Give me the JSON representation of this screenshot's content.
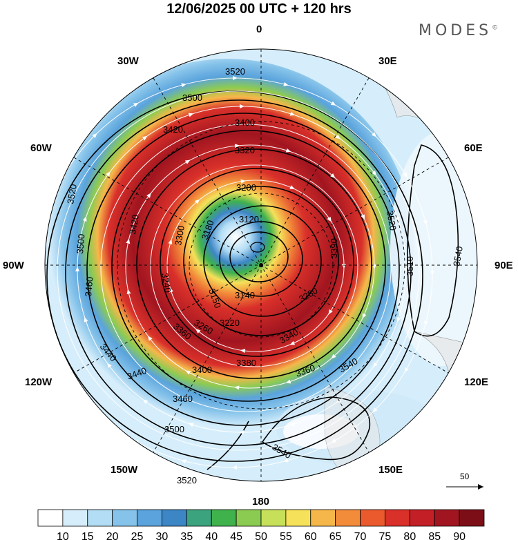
{
  "header": {
    "title": "12/06/2025  00 UTC  + 120 hrs",
    "brand": "MODES"
  },
  "map": {
    "projection": "south-polar-stereographic",
    "longitude_labels": {
      "top": "0",
      "top_right": "30E",
      "upper_right": "60E",
      "right": "90E",
      "lower_right": "120E",
      "bottom_right": "150E",
      "bottom": "180",
      "bottom_left": "150W",
      "lower_left": "120W",
      "left": "90W",
      "upper_left": "60W",
      "top_left": "30W"
    },
    "contour_labels": [
      "3520",
      "3500",
      "3420",
      "3400",
      "3320",
      "3200",
      "3120",
      "3180",
      "3300",
      "3420",
      "3440",
      "3460",
      "3500",
      "3520",
      "3540",
      "3510",
      "3540",
      "3360",
      "3340",
      "3260",
      "3220",
      "3140",
      "3150",
      "3240",
      "3280",
      "3390",
      "3440",
      "3400",
      "3460",
      "3500",
      "3520",
      "3540",
      "3520",
      "3380",
      "3360"
    ],
    "vector_reference": {
      "value": "50"
    }
  },
  "colorbar": {
    "labels": [
      "10",
      "15",
      "20",
      "25",
      "30",
      "35",
      "40",
      "45",
      "50",
      "55",
      "60",
      "65",
      "70",
      "75",
      "80",
      "85",
      "90"
    ],
    "colors": [
      "#ffffff",
      "#d6eefb",
      "#b3ddf5",
      "#86c3ea",
      "#5aa3dc",
      "#3d86c6",
      "#3ba37d",
      "#3fb24c",
      "#8ccb52",
      "#c7e05a",
      "#f5e15a",
      "#f6b74a",
      "#f28b3a",
      "#ea5a2d",
      "#d9302a",
      "#c21f26",
      "#a11520",
      "#7c0e18"
    ]
  }
}
